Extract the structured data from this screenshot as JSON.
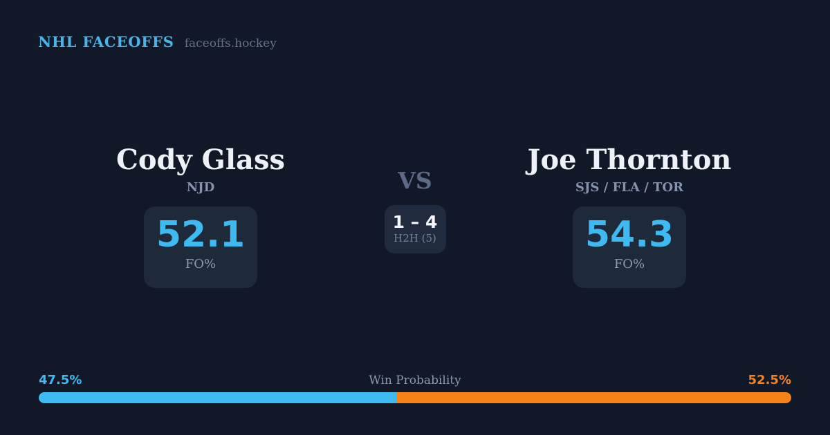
{
  "brand": {
    "title": "NHL FACEOFFS",
    "domain": "faceoffs.hockey"
  },
  "players": {
    "left": {
      "name": "Cody Glass",
      "teams": "NJD",
      "stat_value": "52.1",
      "stat_label": "FO%"
    },
    "right": {
      "name": "Joe Thornton",
      "teams": "SJS / FLA / TOR",
      "stat_value": "54.3",
      "stat_label": "FO%"
    }
  },
  "center": {
    "vs_label": "VS",
    "h2h_score": "1 – 4",
    "h2h_label": "H2H (5)"
  },
  "win_probability": {
    "label": "Win Probability",
    "left_pct_label": "47.5%",
    "right_pct_label": "52.5%",
    "left_value": 47.5,
    "right_value": 52.5,
    "left_color": "#3dbaf2",
    "right_color": "#f8821a"
  },
  "colors": {
    "background": "#111827",
    "card_background": "#1e293a",
    "accent_blue": "#3dbaf2",
    "accent_orange": "#f8821a",
    "text_primary": "#eef2f8",
    "text_muted": "#8593ab"
  }
}
